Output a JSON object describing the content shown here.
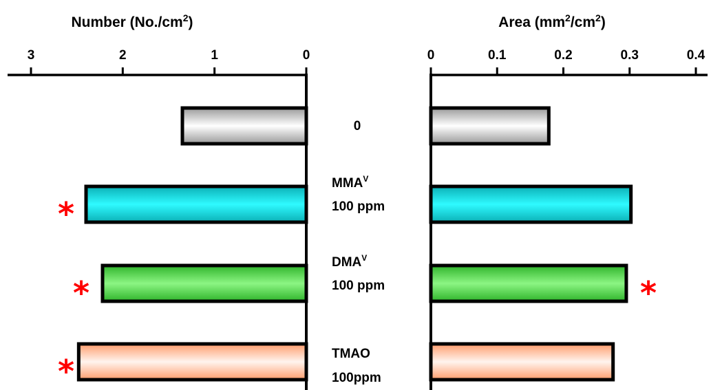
{
  "chart_data": [
    {
      "type": "bar",
      "orientation": "horizontal",
      "direction": "right-to-left",
      "title": "Number (No./cm²)",
      "ticks": [
        "3",
        "2",
        "1",
        "0"
      ],
      "xlim": [
        0,
        3.0
      ],
      "categories": [
        "0",
        "MMAV 100 ppm",
        "DMAV 100 ppm",
        "TMAO 100ppm"
      ],
      "values": [
        1.35,
        2.4,
        2.22,
        2.48
      ],
      "significant": [
        false,
        true,
        true,
        true
      ]
    },
    {
      "type": "bar",
      "orientation": "horizontal",
      "direction": "left-to-right",
      "title": "Area (mm²/cm²)",
      "ticks": [
        "0",
        "0.1",
        "0.2",
        "0.3",
        "0.4"
      ],
      "xlim": [
        0,
        0.4
      ],
      "categories": [
        "0",
        "MMAV 100 ppm",
        "DMAV 100 ppm",
        "TMAO 100ppm"
      ],
      "values": [
        0.178,
        0.302,
        0.295,
        0.275
      ],
      "significant": [
        false,
        false,
        true,
        false
      ]
    }
  ],
  "category_labels": [
    {
      "lines": [
        {
          "main": "0",
          "sup": ""
        }
      ]
    },
    {
      "lines": [
        {
          "main": "MMA",
          "sup": "V"
        },
        {
          "main": "100 ppm",
          "sup": ""
        }
      ]
    },
    {
      "lines": [
        {
          "main": "DMA",
          "sup": "V"
        },
        {
          "main": "100 ppm",
          "sup": ""
        }
      ]
    },
    {
      "lines": [
        {
          "main": "TMAO",
          "sup": ""
        },
        {
          "main": "100ppm",
          "sup": ""
        }
      ]
    }
  ],
  "titles": {
    "left": {
      "pre": "Number (No./cm",
      "sup": "2",
      "post": ")"
    },
    "right": {
      "pre": "Area (mm",
      "sup": "2",
      "mid": "/cm",
      "sup2": "2",
      "post": ")"
    }
  },
  "significance_marker": "*",
  "colors": {
    "control": "#d0d0d0",
    "mmav": "#19e3ea",
    "dmav": "#5cdf55",
    "tmao": "#ffc7ac",
    "star": "#ff0000",
    "axis": "#000000"
  }
}
